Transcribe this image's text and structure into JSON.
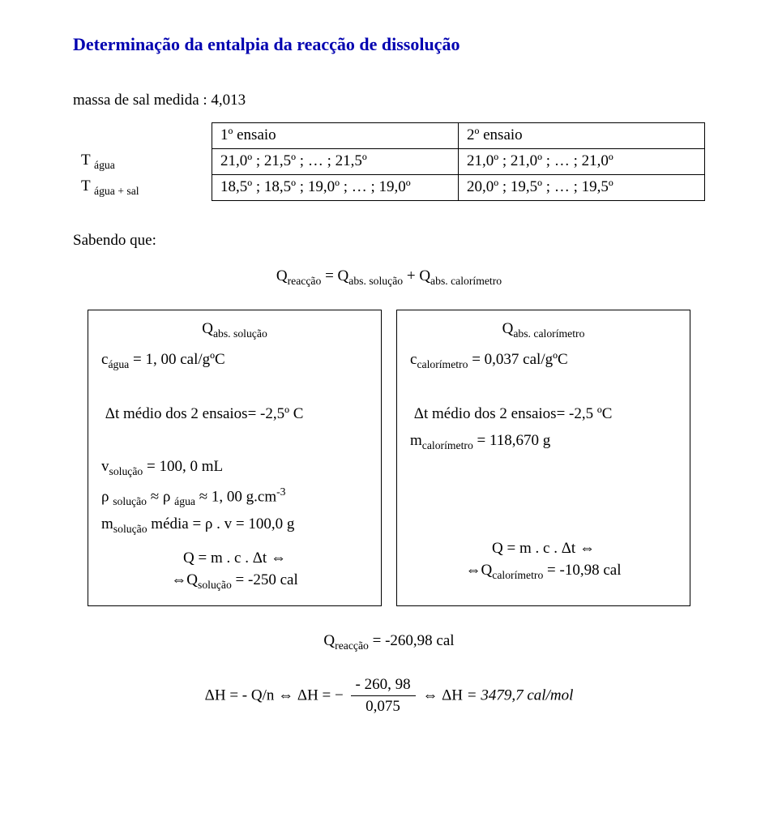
{
  "title": "Determinação da entalpia da reacção de dissolução",
  "massLine": "massa de sal medida : 4,013",
  "colors": {
    "title": "#0000b0",
    "text": "#000000",
    "bg": "#ffffff"
  },
  "table": {
    "headers": {
      "col1": "1º ensaio",
      "col2": "2º ensaio"
    },
    "rows": [
      {
        "label_html": "T <sub>água</sub>",
        "c1": "21,0º ; 21,5º ; … ; 21,5º",
        "c2": "21,0º ; 21,0º ; … ; 21,0º"
      },
      {
        "label_html": "T <sub>água + sal</sub>",
        "c1": "18,5º ; 18,5º ; 19,0º ; … ; 19,0º",
        "c2": "20,0º ; 19,5º ; … ; 19,5º"
      }
    ]
  },
  "sabendo": "Sabendo que:",
  "mainEq_html": "Q<sub>reacção</sub>  = Q<sub>abs. solução</sub> + Q<sub>abs. calorímetro</sub>",
  "leftBox": {
    "title_html": "Q<sub>abs. solução</sub>",
    "lines_html": [
      "c<sub>água</sub> = 1, 00 cal/gºC",
      "&nbsp;",
      "&nbsp;Δt médio dos 2 ensaios= -2,5º C",
      "&nbsp;",
      "v<sub>solução</sub> = 100, 0 mL",
      "ρ <sub>solução</sub> ≈ ρ <sub>água</sub> ≈ 1, 00 g.cm<sup>-3</sup>",
      "m<sub>solução</sub> média = ρ . v  = 100,0 g"
    ],
    "eq1_html": "Q = m . c . Δt ⇔",
    "eq2_html": "⇔Q<sub>solução</sub> = -250 cal"
  },
  "rightBox": {
    "title_html": "Q<sub>abs. calorímetro</sub>",
    "lines_html": [
      "c<sub>calorímetro</sub> = 0,037 cal/gºC",
      "&nbsp;",
      "&nbsp;Δt médio dos 2 ensaios= -2,5 ºC",
      "m<sub>calorímetro</sub> = 118,670 g"
    ],
    "eq1_html": "Q = m . c . Δt ⇔",
    "eq2_html": "⇔Q<sub>calorímetro</sub> = -10,98 cal"
  },
  "sumEq_html": "Q<sub>reacção</sub>  = -260,98 cal",
  "finalEq": {
    "lhs": "ΔH = - Q/n ⇔ ΔH = −",
    "num": "- 260, 98",
    "den": "0,075",
    "rhs_html": " ⇔ ΔH  <span class=\"italic\">= 3479,7 cal/mol</span>"
  }
}
